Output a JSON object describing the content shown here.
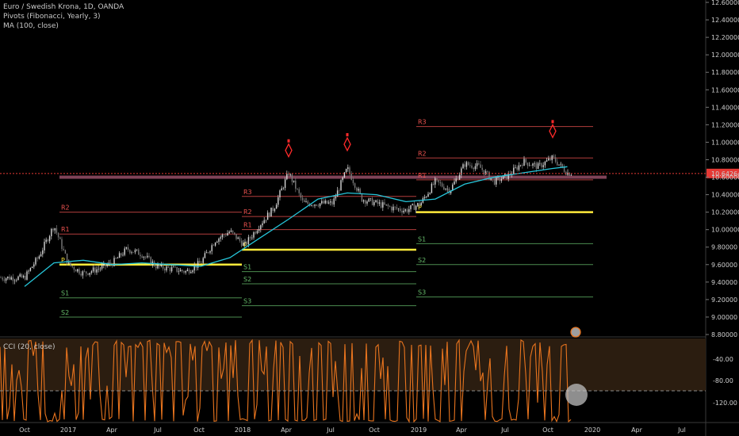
{
  "legend": {
    "symbol": "Euro / Swedish Krona, 1D, OANDA",
    "pivots": "Pivots (Fibonacci, Yearly, 3)",
    "ma": "MA (100, close)"
  },
  "cci_label": "CCI (20, close)",
  "colors": {
    "background": "#000000",
    "candles": "#9a9a9a",
    "ma_line": "#26c6da",
    "pivot_p": "#ffeb3b",
    "pivot_r": "#ef5350",
    "pivot_s": "#66bb6a",
    "cci_line": "#e8741e",
    "cci_band": "#2b1d10",
    "current_price": "#e53935",
    "zone": "#8e4a62"
  },
  "price_axis": {
    "labels": [
      "12.60000",
      "12.40000",
      "12.20000",
      "12.00000",
      "11.80000",
      "11.60000",
      "11.40000",
      "11.20000",
      "11.00000",
      "10.80000",
      "10.60000",
      "10.40000",
      "10.20000",
      "10.00000",
      "9.80000",
      "9.60000",
      "9.40000",
      "9.20000",
      "9.00000",
      "8.80000"
    ],
    "current_price": "10.64264"
  },
  "cci_axis": {
    "labels": [
      "-40.00",
      "-80.00",
      "-120.00"
    ],
    "dashed_level": -100
  },
  "time_axis": {
    "labels": [
      "Oct",
      "2017",
      "Apr",
      "Jul",
      "Oct",
      "2018",
      "Apr",
      "Jul",
      "Oct",
      "2019",
      "Apr",
      "Jul",
      "Oct",
      "2020",
      "Apr",
      "Jul"
    ]
  },
  "chart_data": {
    "type": "line",
    "title": "Euro / Swedish Krona, 1D, OANDA",
    "ylim": [
      8.8,
      12.6
    ],
    "series": [
      {
        "name": "Euro / Swedish Krona",
        "points": [
          [
            "Oct 2016",
            9.45
          ],
          [
            "Nov 2016",
            9.7
          ],
          [
            "Dec 2016",
            10.05
          ],
          [
            "Jan 2017",
            9.6
          ],
          [
            "Feb 2017",
            9.5
          ],
          [
            "Mar 2017",
            9.55
          ],
          [
            "Apr 2017",
            9.62
          ],
          [
            "May 2017",
            9.78
          ],
          [
            "Jun 2017",
            9.72
          ],
          [
            "Jul 2017",
            9.58
          ],
          [
            "Aug 2017",
            9.55
          ],
          [
            "Sep 2017",
            9.52
          ],
          [
            "Oct 2017",
            9.62
          ],
          [
            "Nov 2017",
            9.88
          ],
          [
            "Dec 2017",
            9.98
          ],
          [
            "Jan 2018",
            9.82
          ],
          [
            "Feb 2018",
            10.05
          ],
          [
            "Mar 2018",
            10.25
          ],
          [
            "Apr 2018",
            10.65
          ],
          [
            "May 2018",
            10.3
          ],
          [
            "Jun 2018",
            10.3
          ],
          [
            "Jul 2018",
            10.3
          ],
          [
            "Aug 2018",
            10.7
          ],
          [
            "Sep 2018",
            10.35
          ],
          [
            "Oct 2018",
            10.3
          ],
          [
            "Nov 2018",
            10.25
          ],
          [
            "Dec 2018",
            10.22
          ],
          [
            "Jan 2019",
            10.3
          ],
          [
            "Feb 2019",
            10.55
          ],
          [
            "Mar 2019",
            10.45
          ],
          [
            "Apr 2019",
            10.75
          ],
          [
            "May 2019",
            10.72
          ],
          [
            "Jun 2019",
            10.55
          ],
          [
            "Jul 2019",
            10.62
          ],
          [
            "Aug 2019",
            10.78
          ],
          [
            "Sep 2019",
            10.72
          ],
          [
            "Oct 2019",
            10.82
          ],
          [
            "Nov 2019",
            10.65
          ]
        ]
      },
      {
        "name": "MA (100, close)",
        "points": [
          [
            "Oct 2016",
            9.35
          ],
          [
            "Dec 2016",
            9.62
          ],
          [
            "Feb 2017",
            9.65
          ],
          [
            "Apr 2017",
            9.6
          ],
          [
            "Jun 2017",
            9.62
          ],
          [
            "Aug 2017",
            9.6
          ],
          [
            "Oct 2017",
            9.58
          ],
          [
            "Dec 2017",
            9.68
          ],
          [
            "Feb 2018",
            9.9
          ],
          [
            "Apr 2018",
            10.12
          ],
          [
            "Jun 2018",
            10.35
          ],
          [
            "Aug 2018",
            10.42
          ],
          [
            "Oct 2018",
            10.4
          ],
          [
            "Dec 2018",
            10.32
          ],
          [
            "Feb 2019",
            10.35
          ],
          [
            "Apr 2019",
            10.52
          ],
          [
            "Jun 2019",
            10.6
          ],
          [
            "Aug 2019",
            10.65
          ],
          [
            "Oct 2019",
            10.7
          ],
          [
            "Nov 2019",
            10.72
          ]
        ]
      }
    ],
    "pivots": [
      {
        "year": "2017",
        "levels": [
          {
            "name": "R2",
            "value": 10.2
          },
          {
            "name": "R1",
            "value": 9.95
          },
          {
            "name": "P",
            "value": 9.6
          },
          {
            "name": "S1",
            "value": 9.22
          },
          {
            "name": "S2",
            "value": 9.0
          }
        ]
      },
      {
        "year": "2018",
        "levels": [
          {
            "name": "R3",
            "value": 10.38
          },
          {
            "name": "R2",
            "value": 10.15
          },
          {
            "name": "R1",
            "value": 10.0
          },
          {
            "name": "P",
            "value": 9.77
          },
          {
            "name": "S1",
            "value": 9.52
          },
          {
            "name": "S2",
            "value": 9.38
          },
          {
            "name": "S3",
            "value": 9.13
          }
        ]
      },
      {
        "year": "2019",
        "levels": [
          {
            "name": "R3",
            "value": 11.18
          },
          {
            "name": "R2",
            "value": 10.82
          },
          {
            "name": "R1",
            "value": 10.57
          },
          {
            "name": "P",
            "value": 10.2
          },
          {
            "name": "S1",
            "value": 9.84
          },
          {
            "name": "S2",
            "value": 9.6
          },
          {
            "name": "S3",
            "value": 9.23
          }
        ]
      }
    ]
  }
}
